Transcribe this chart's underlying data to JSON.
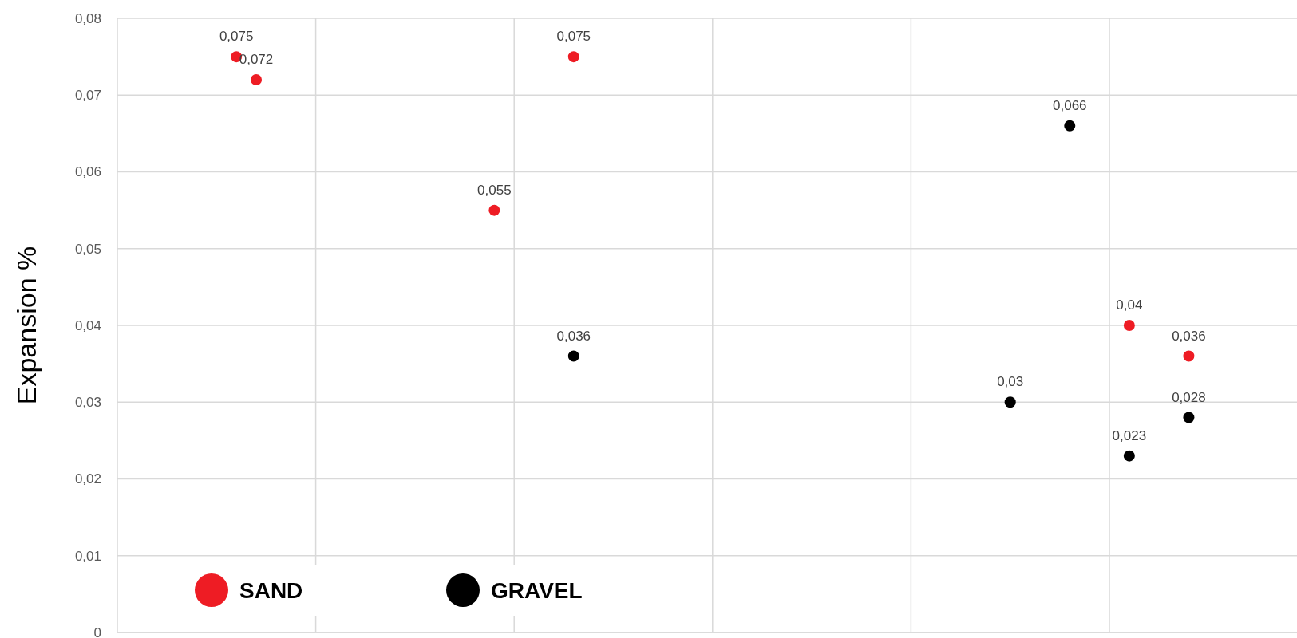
{
  "chart_data": {
    "type": "scatter",
    "ylabel": "Expansion %",
    "categories": [
      null,
      null,
      null,
      null,
      null,
      null,
      null,
      null,
      null,
      null,
      null,
      null,
      null,
      null,
      null,
      null,
      null,
      null,
      null,
      null,
      null,
      null,
      null,
      null,
      null,
      null,
      null,
      null,
      null,
      null,
      null,
      null,
      null,
      null,
      null,
      null,
      null,
      null,
      null,
      null,
      null,
      null,
      null,
      null,
      null,
      null,
      null,
      null,
      null,
      null,
      null,
      null,
      null,
      null,
      null,
      null,
      null,
      null,
      null,
      null
    ],
    "ylim": [
      0,
      0.08
    ],
    "yticks": [
      0,
      {
        "value": 0.01,
        "label": "0,01"
      },
      {
        "value": 0.02,
        "label": "0,02"
      },
      {
        "value": 0.03,
        "label": "0,03"
      },
      {
        "value": 0.04,
        "label": "0,04"
      },
      {
        "value": 0.05,
        "label": "0,05"
      },
      {
        "value": 0.06,
        "label": "0,06"
      },
      {
        "value": 0.07,
        "label": "0,07"
      },
      {
        "value": 0.08,
        "label": "0,08"
      }
    ],
    "grid": true,
    "legend": "bottom left",
    "marker": "circle",
    "series": [
      {
        "name": "SAND",
        "color": "#ee1c24",
        "values": [
          null,
          null,
          null,
          null,
          null,
          null,
          0.075,
          0.072,
          null,
          null,
          null,
          null,
          null,
          null,
          null,
          null,
          null,
          null,
          null,
          0.055,
          null,
          null,
          null,
          0.075,
          null,
          null,
          null,
          null,
          null,
          null,
          null,
          null,
          null,
          null,
          null,
          null,
          null,
          null,
          null,
          null,
          null,
          null,
          null,
          null,
          null,
          null,
          null,
          null,
          null,
          null,
          null,
          0.04,
          null,
          null,
          0.036,
          null,
          null,
          null,
          null,
          null
        ],
        "value_labels": [
          null,
          null,
          null,
          null,
          null,
          null,
          "0,075",
          "0,072",
          null,
          null,
          null,
          null,
          null,
          null,
          null,
          null,
          null,
          null,
          null,
          "0,055",
          null,
          null,
          null,
          "0,075",
          null,
          null,
          null,
          null,
          null,
          null,
          null,
          null,
          null,
          null,
          null,
          null,
          null,
          null,
          null,
          null,
          null,
          null,
          null,
          null,
          null,
          null,
          null,
          null,
          null,
          null,
          null,
          "0,04",
          null,
          null,
          "0,036",
          null,
          null,
          null,
          null,
          null
        ]
      },
      {
        "name": "GRAVEL",
        "color": "#000000",
        "values": [
          null,
          null,
          null,
          null,
          null,
          null,
          null,
          null,
          null,
          null,
          null,
          null,
          null,
          null,
          null,
          null,
          null,
          null,
          null,
          null,
          null,
          null,
          null,
          0.036,
          null,
          null,
          null,
          null,
          null,
          null,
          null,
          null,
          null,
          null,
          null,
          null,
          null,
          null,
          null,
          null,
          null,
          null,
          null,
          null,
          null,
          0.03,
          null,
          null,
          0.066,
          null,
          null,
          0.023,
          null,
          null,
          0.028,
          null,
          null,
          null,
          null,
          null
        ],
        "value_labels": [
          null,
          null,
          null,
          null,
          null,
          null,
          null,
          null,
          null,
          null,
          null,
          null,
          null,
          null,
          null,
          null,
          null,
          null,
          null,
          null,
          null,
          null,
          null,
          "0,036",
          null,
          null,
          null,
          null,
          null,
          null,
          null,
          null,
          null,
          null,
          null,
          null,
          null,
          null,
          null,
          null,
          null,
          null,
          null,
          null,
          null,
          "0,03",
          null,
          null,
          "0,066",
          null,
          null,
          "0,023",
          null,
          null,
          "0,028",
          null,
          null,
          null,
          null,
          null
        ]
      }
    ]
  }
}
